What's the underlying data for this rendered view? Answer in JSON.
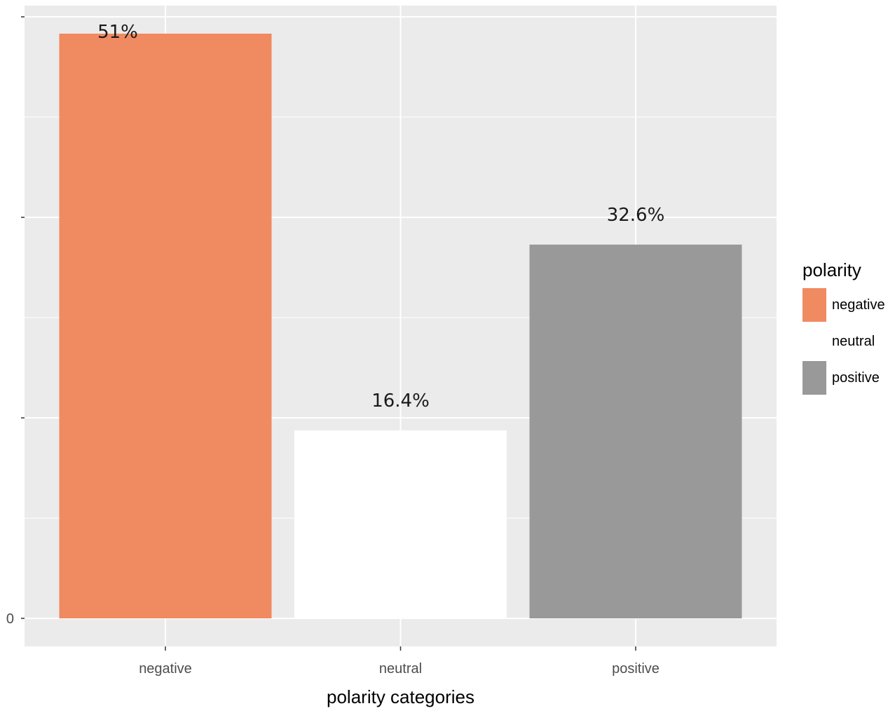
{
  "chart_data": {
    "type": "bar",
    "categories": [
      "negative",
      "neutral",
      "positive"
    ],
    "values": [
      51,
      16.4,
      32.6
    ],
    "data_labels": [
      "51%",
      "16.4%",
      "32.6%"
    ],
    "colors": [
      "#f08a61",
      "#ffffff",
      "#999999"
    ],
    "title": "",
    "xlabel": "polarity categories",
    "ylabel": "",
    "ylim": [
      0,
      51.7
    ],
    "y_tick_labels": [
      "0"
    ],
    "grid": true,
    "panel_background": "#ebebeb",
    "legend": {
      "title": "polarity",
      "position": "right",
      "entries": [
        {
          "label": "negative",
          "color": "#f08a61"
        },
        {
          "label": "neutral",
          "color": "#ffffff"
        },
        {
          "label": "positive",
          "color": "#999999"
        }
      ]
    }
  }
}
